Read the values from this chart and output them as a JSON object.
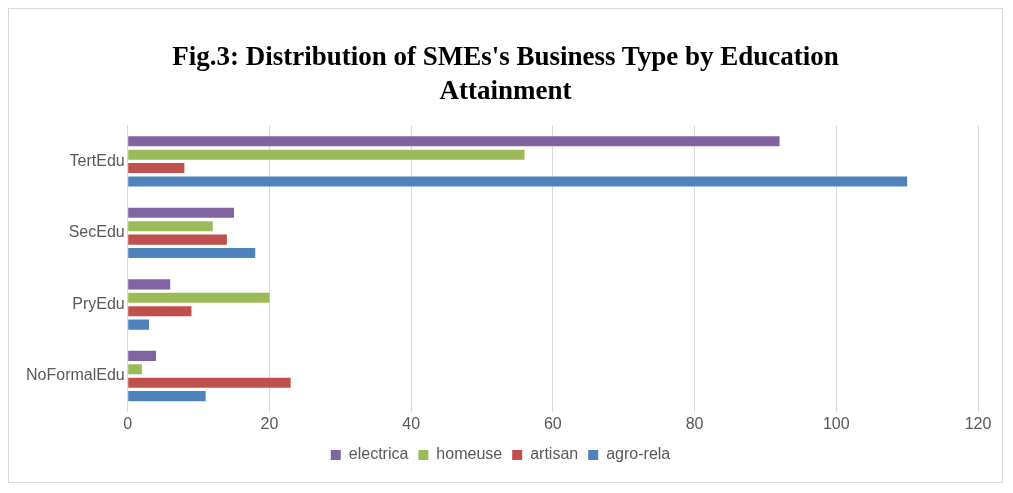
{
  "chart_data": {
    "type": "bar",
    "orientation": "horizontal",
    "title": "Fig.3: Distribution of SMEs's Business Type by Education Attainment",
    "categories": [
      "TertEdu",
      "SecEdu",
      "PryEdu",
      "NoFormalEdu"
    ],
    "series": [
      {
        "name": "electrica",
        "color": "#8064a2",
        "values": [
          92,
          15,
          6,
          4
        ]
      },
      {
        "name": "homeuse",
        "color": "#9bbb59",
        "values": [
          56,
          12,
          20,
          2
        ]
      },
      {
        "name": "artisan",
        "color": "#c0504d",
        "values": [
          8,
          14,
          9,
          23
        ]
      },
      {
        "name": "agro-rela",
        "color": "#4f81bd",
        "values": [
          110,
          18,
          3,
          11
        ]
      }
    ],
    "xlim": [
      0,
      120
    ],
    "xticks": [
      0,
      20,
      40,
      60,
      80,
      100,
      120
    ],
    "grid": "x",
    "legend": "bottom"
  }
}
